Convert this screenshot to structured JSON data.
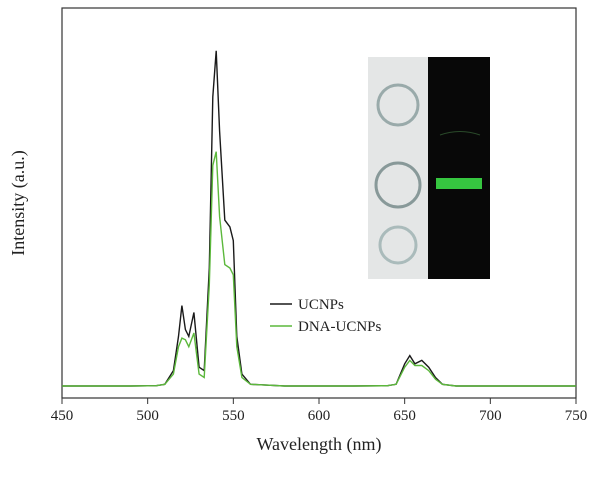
{
  "chart_data": {
    "type": "line",
    "xlabel": "Wavelength (nm)",
    "ylabel": "Intensity (a.u.)",
    "x": [
      450,
      470,
      490,
      505,
      510,
      515,
      518,
      520,
      522,
      524,
      527,
      530,
      533,
      536,
      538,
      540,
      542,
      545,
      548,
      550,
      552,
      555,
      560,
      580,
      600,
      620,
      640,
      645,
      650,
      653,
      656,
      660,
      664,
      668,
      672,
      680,
      700,
      720,
      750
    ],
    "series": [
      {
        "name": "UCNPs",
        "color": "#1a1a1a",
        "values": [
          0.005,
          0.005,
          0.005,
          0.006,
          0.01,
          0.05,
          0.15,
          0.24,
          0.17,
          0.15,
          0.22,
          0.06,
          0.05,
          0.35,
          0.85,
          0.985,
          0.75,
          0.49,
          0.47,
          0.43,
          0.15,
          0.04,
          0.01,
          0.005,
          0.005,
          0.005,
          0.006,
          0.01,
          0.07,
          0.094,
          0.07,
          0.08,
          0.06,
          0.03,
          0.01,
          0.005,
          0.005,
          0.005,
          0.005
        ]
      },
      {
        "name": "DNA-UCNPs",
        "color": "#5cb83c",
        "values": [
          0.005,
          0.005,
          0.005,
          0.006,
          0.01,
          0.04,
          0.12,
          0.145,
          0.14,
          0.12,
          0.16,
          0.04,
          0.03,
          0.3,
          0.65,
          0.69,
          0.5,
          0.36,
          0.35,
          0.33,
          0.12,
          0.03,
          0.01,
          0.005,
          0.005,
          0.005,
          0.006,
          0.01,
          0.06,
          0.08,
          0.065,
          0.065,
          0.05,
          0.025,
          0.01,
          0.005,
          0.005,
          0.005,
          0.005
        ]
      }
    ],
    "xlim": [
      450,
      750
    ],
    "xticks": [
      450,
      500,
      550,
      600,
      650,
      700,
      750
    ],
    "ylim": [
      -0.03,
      1.11
    ]
  }
}
